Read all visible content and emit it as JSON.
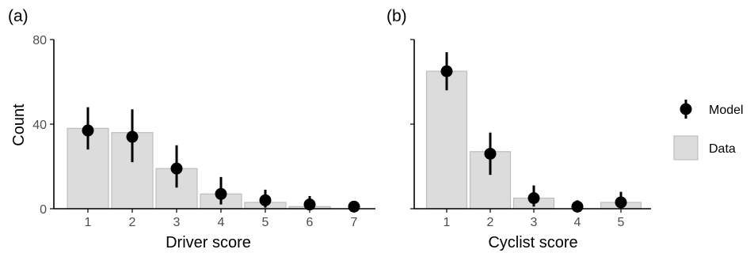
{
  "chart_data": [
    {
      "type": "bar",
      "panel_label": "(a)",
      "xlabel": "Driver score",
      "ylabel": "Count",
      "categories": [
        "1",
        "2",
        "3",
        "4",
        "5",
        "6",
        "7"
      ],
      "ylim": [
        0,
        80
      ],
      "yticks": [
        0,
        40,
        80
      ],
      "ytick_labels": [
        "0",
        "40",
        "80"
      ],
      "series": [
        {
          "name": "Data",
          "type": "bar",
          "values": [
            38,
            36,
            19,
            7,
            3,
            1,
            0
          ]
        },
        {
          "name": "Model",
          "type": "pointrange",
          "values": [
            37,
            34,
            19,
            7,
            4,
            2,
            1
          ],
          "lower": [
            28,
            22,
            10,
            2,
            0.5,
            0,
            0
          ],
          "upper": [
            48,
            47,
            30,
            15,
            9,
            6,
            3
          ]
        }
      ]
    },
    {
      "type": "bar",
      "panel_label": "(b)",
      "xlabel": "Cyclist score",
      "ylabel": "",
      "categories": [
        "1",
        "2",
        "3",
        "4",
        "5"
      ],
      "ylim": [
        0,
        80
      ],
      "yticks": [
        0,
        40,
        80
      ],
      "ytick_labels": [
        "",
        "",
        ""
      ],
      "series": [
        {
          "name": "Data",
          "type": "bar",
          "values": [
            65,
            27,
            5,
            0,
            3
          ]
        },
        {
          "name": "Model",
          "type": "pointrange",
          "values": [
            65,
            26,
            5,
            1,
            3
          ],
          "lower": [
            56,
            16,
            1,
            0,
            0
          ],
          "upper": [
            74,
            36,
            11,
            4,
            8
          ]
        }
      ]
    }
  ],
  "legend": {
    "position": "right",
    "items": [
      {
        "key": "model",
        "label": "Model"
      },
      {
        "key": "data",
        "label": "Data"
      }
    ]
  },
  "colors": {
    "bar_fill": "#dcdcdc",
    "bar_stroke": "#bdbdbd",
    "point": "#000000",
    "tick_text": "#4d4d4d"
  }
}
